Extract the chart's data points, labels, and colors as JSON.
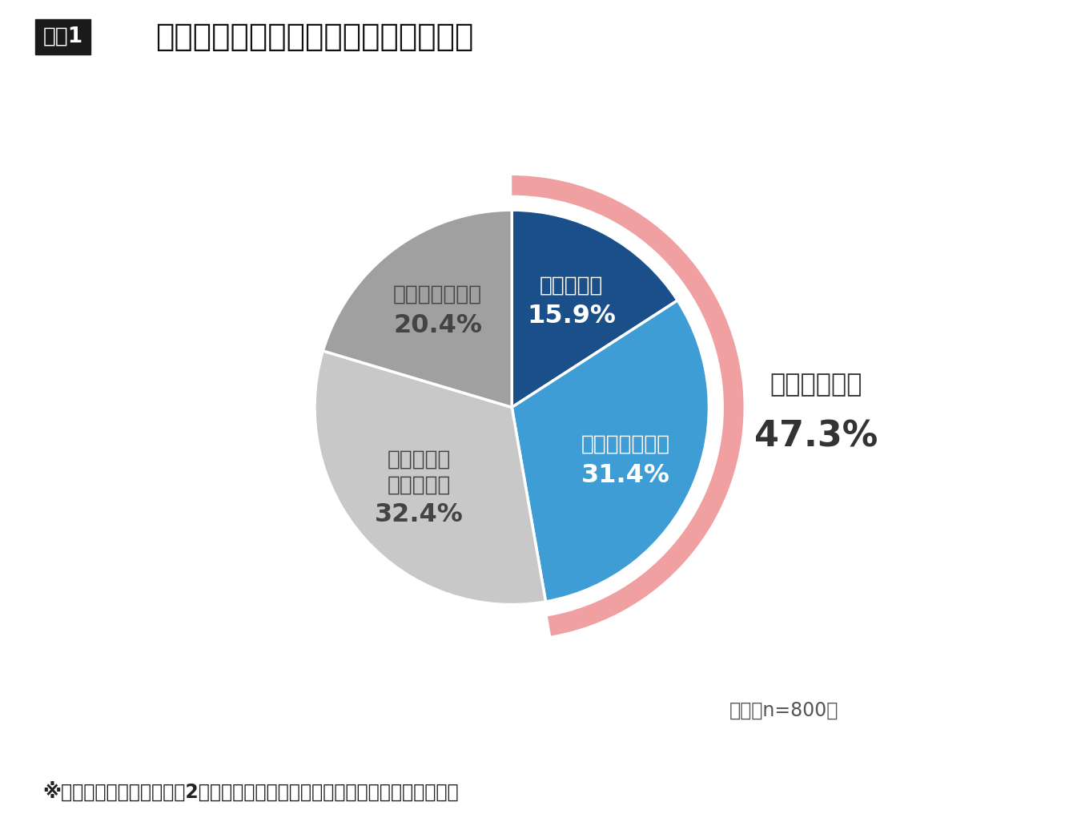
{
  "title": "今年は例年より紫外線対策を忘れがち",
  "title_prefix": "図表1",
  "segments": [
    {
      "label": "あてはまる",
      "value": 15.9,
      "color": "#1a4f8a",
      "label_multiline": "あてはまる"
    },
    {
      "label": "まああてはまる",
      "value": 31.4,
      "color": "#3d9dd4",
      "label_multiline": "まああてはまる"
    },
    {
      "label": "あまりあてはまらない",
      "value": 32.4,
      "color": "#c8c8c8",
      "label_multiline": "あまりあて\nはまらない"
    },
    {
      "label": "あてはまらない",
      "value": 20.4,
      "color": "#a0a0a0",
      "label_multiline": "あてはまらない"
    }
  ],
  "ring_color": "#f0a0a0",
  "ring_total_label": "あてはまる計",
  "ring_total_value": "47.3%",
  "footnote_n": "全体（n=800）",
  "footnote": "※構成比（％）は小数点第2位以下を四捨五入しているため、誤差が生じます。",
  "bg_color": "#ffffff",
  "title_box_color": "#1a1a1a",
  "title_box_text_color": "#ffffff",
  "label_fontsize": 19,
  "percent_fontsize": 23,
  "ring_label_fontsize": 23,
  "ring_percent_fontsize": 32,
  "title_fontsize": 28,
  "title_prefix_fontsize": 19,
  "footnote_fontsize": 17,
  "n_fontsize": 17
}
